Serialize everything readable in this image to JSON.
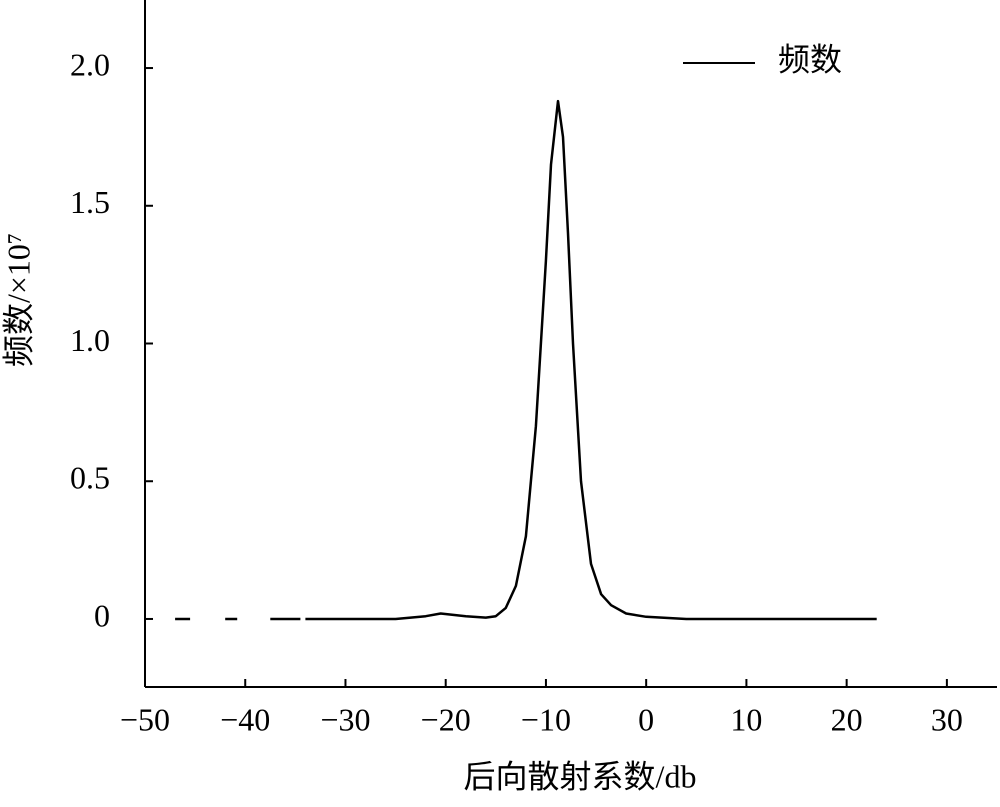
{
  "chart_data": {
    "type": "line",
    "x_label": "后向散射系数/db",
    "y_label": "频数/×10⁷",
    "xlim": [
      -50,
      35
    ],
    "ylim": [
      -0.247,
      2.247
    ],
    "xticks": [
      {
        "value": -50,
        "label": "−50"
      },
      {
        "value": -40,
        "label": "−40"
      },
      {
        "value": -30,
        "label": "−30"
      },
      {
        "value": -20,
        "label": "−20"
      },
      {
        "value": -10,
        "label": "−10"
      },
      0,
      10,
      20,
      30
    ],
    "yticks": [
      0,
      0.5,
      {
        "value": 1,
        "label": "1.0"
      },
      1.5,
      {
        "value": 2,
        "label": "2.0"
      }
    ],
    "legend": "upper right",
    "x": [
      -47,
      -45.5,
      null,
      -42,
      -40.8,
      null,
      -37.5,
      -34.5,
      null,
      -34,
      -33.2,
      -30,
      -25,
      -22,
      -20.5,
      -18,
      -16,
      -15,
      -14,
      -13,
      -12,
      -11,
      -10,
      -9.5,
      -8.8,
      -8.3,
      -7.8,
      -7.3,
      -6.5,
      -5.5,
      -4.5,
      -3.5,
      -2,
      0,
      4,
      23
    ],
    "series": [
      {
        "name": "频数",
        "color": "#000000",
        "values": [
          0,
          0,
          null,
          0,
          0,
          null,
          0,
          0,
          null,
          0,
          0,
          0,
          0,
          0.01,
          0.02,
          0.01,
          0.005,
          0.01,
          0.04,
          0.12,
          0.3,
          0.7,
          1.3,
          1.65,
          1.88,
          1.75,
          1.4,
          1.0,
          0.5,
          0.2,
          0.09,
          0.05,
          0.02,
          0.008,
          0,
          0
        ]
      }
    ]
  }
}
